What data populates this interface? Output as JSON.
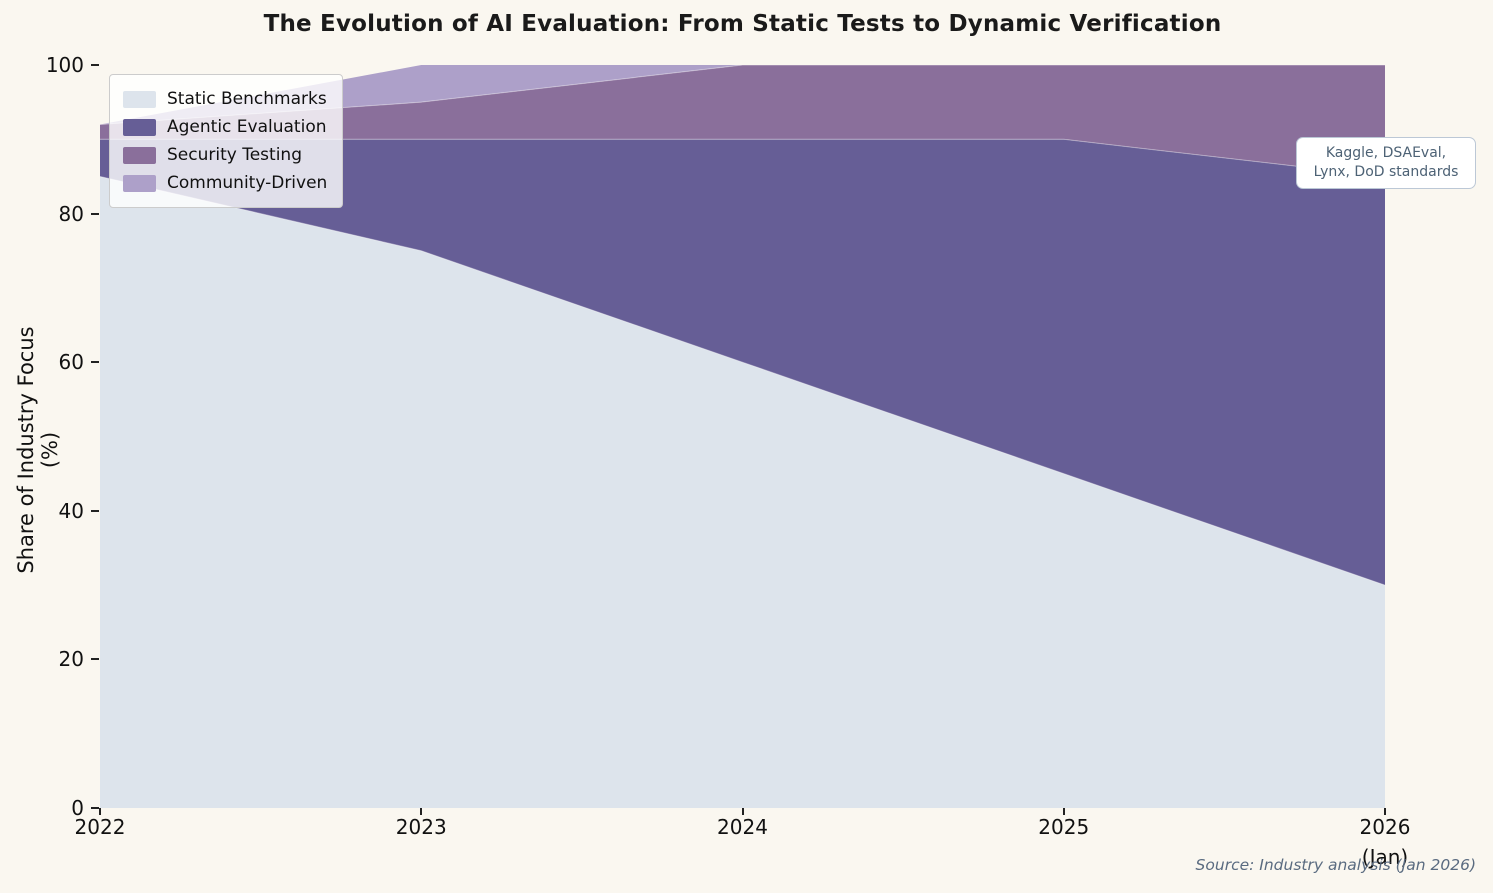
{
  "page": {
    "background": "#faf7f0"
  },
  "chart_data": {
    "type": "area",
    "stacked": true,
    "title": "The Evolution of AI Evaluation: From Static Tests to Dynamic Verification",
    "ylabel": "Share of Industry Focus (%)",
    "xlabel": "(Jan)",
    "x": [
      2022,
      2023,
      2024,
      2025,
      2026
    ],
    "x_tick_labels": [
      "2022",
      "2023",
      "2024",
      "2025",
      "2026"
    ],
    "y_ticks": [
      0,
      20,
      40,
      60,
      80,
      100
    ],
    "ylim": [
      0,
      100
    ],
    "grid": false,
    "legend_position": "upper-left",
    "series": [
      {
        "name": "Static Benchmarks",
        "color": "#dde4ec",
        "values": [
          85,
          75,
          60,
          45,
          30
        ]
      },
      {
        "name": "Agentic Evaluation",
        "color": "#665e96",
        "values": [
          5,
          15,
          30,
          45,
          55
        ]
      },
      {
        "name": "Security Testing",
        "color": "#8a6f9b",
        "values": [
          2,
          5,
          10,
          10,
          15
        ]
      },
      {
        "name": "Community-Driven",
        "color": "#ada0c9",
        "values": [
          0,
          5,
          0,
          0,
          0
        ]
      }
    ],
    "annotation": {
      "line1": "Kaggle, DSAEval,",
      "line2": "Lynx, DoD standards"
    },
    "source": "Source: Industry analysis (Jan 2026)"
  }
}
